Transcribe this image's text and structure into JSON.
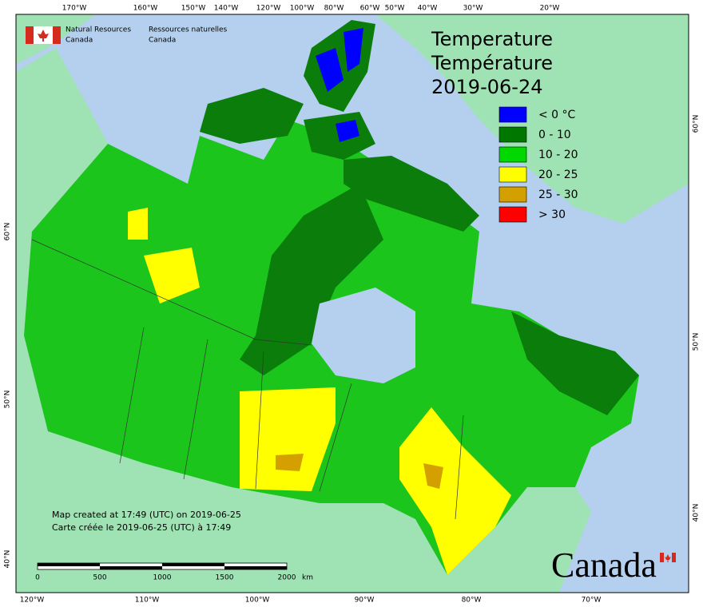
{
  "header": {
    "agency_en": [
      "Natural Resources",
      "Canada"
    ],
    "agency_fr": [
      "Ressources naturelles",
      "Canada"
    ]
  },
  "title": [
    "Temperature",
    "Température"
  ],
  "date": "2019-06-24",
  "legend": [
    {
      "label": "< 0 °C",
      "color": "#0000ff"
    },
    {
      "label": "0 - 10",
      "color": "#007800"
    },
    {
      "label": "10 - 20",
      "color": "#00d800"
    },
    {
      "label": "20 - 25",
      "color": "#ffff00"
    },
    {
      "label": "25 - 30",
      "color": "#d4a000"
    },
    {
      "label": "> 30",
      "color": "#ff0000"
    }
  ],
  "top_longitudes": [
    "170°W",
    "160°W",
    "150°W",
    "140°W",
    "120°W",
    "100°W",
    "80°W",
    "60°W",
    "50°W",
    "40°W",
    "30°W",
    "20°W"
  ],
  "bottom_longitudes": [
    "120°W",
    "110°W",
    "100°W",
    "90°W",
    "80°W",
    "70°W"
  ],
  "left_latitudes": [
    "60°N",
    "50°N",
    "40°N"
  ],
  "right_latitudes": [
    "60°N",
    "50°N",
    "40°N"
  ],
  "credits": [
    "Map created at 17:49 (UTC) on 2019-06-25",
    "Carte créée le 2019-06-25 (UTC) à 17:49"
  ],
  "scale_bar": {
    "labels": [
      "0",
      "500",
      "1000",
      "1500",
      "2000"
    ],
    "unit": "km"
  },
  "wordmark": "Canada"
}
